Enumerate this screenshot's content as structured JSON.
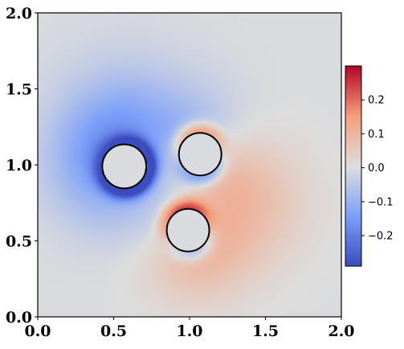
{
  "chart_data": {
    "type": "heatmap",
    "title": "",
    "xlabel": "",
    "ylabel": "",
    "xlim": [
      0.0,
      2.0
    ],
    "ylim": [
      0.0,
      2.0
    ],
    "x_ticks": [
      "0.0",
      "0.5",
      "1.0",
      "1.5",
      "2.0"
    ],
    "y_ticks": [
      "0.0",
      "0.5",
      "1.0",
      "1.5",
      "2.0"
    ],
    "colormap": "coolwarm",
    "colorbar": {
      "vmin": -0.29,
      "vmax": 0.3,
      "ticks": [
        "0.2",
        "0.1",
        "0.0",
        "−0.1",
        "−0.2"
      ],
      "tick_values": [
        0.2,
        0.1,
        0.0,
        -0.1,
        -0.2
      ],
      "placement": "right"
    },
    "field_model": {
      "background": 0.0,
      "sources": [
        {
          "cx": 0.57,
          "cy": 0.99,
          "r": 0.145,
          "strength": -0.28,
          "dipole_angle_deg": 150,
          "dipole": 0.6
        },
        {
          "cx": 1.07,
          "cy": 1.07,
          "r": 0.14,
          "strength": 0.02,
          "dipole_angle_deg": 100,
          "dipole": 0.9
        },
        {
          "cx": 0.99,
          "cy": 0.57,
          "r": 0.14,
          "strength": 0.05,
          "dipole_angle_deg": 110,
          "dipole": 0.9
        }
      ]
    },
    "circles": [
      {
        "cx": 0.57,
        "cy": 0.99,
        "r": 0.145
      },
      {
        "cx": 1.07,
        "cy": 1.07,
        "r": 0.14
      },
      {
        "cx": 0.99,
        "cy": 0.57,
        "r": 0.14
      }
    ]
  },
  "colors": {
    "circle_stroke": "#000000",
    "axes_stroke": "#000000",
    "cmap_low": "#3b4cc0",
    "cmap_mid": "#dddddd",
    "cmap_high": "#b40426"
  }
}
